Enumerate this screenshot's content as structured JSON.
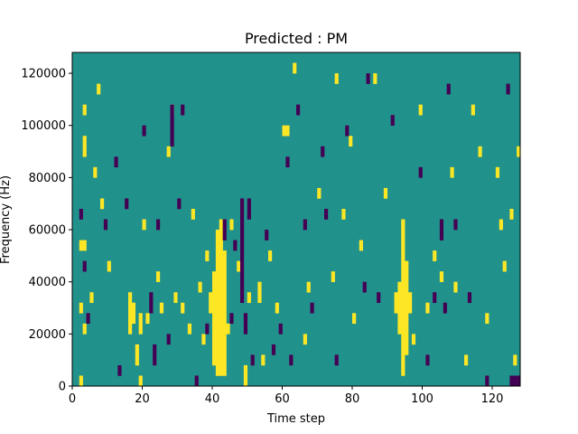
{
  "chart_data": {
    "type": "heatmap",
    "title": "Predicted : PM",
    "xlabel": "Time step",
    "ylabel": "Frequency (Hz)",
    "xlim": [
      0,
      128
    ],
    "ylim": [
      0,
      128000
    ],
    "x_ticks": [
      0,
      20,
      40,
      60,
      80,
      100,
      120
    ],
    "x_tick_labels": [
      "0",
      "20",
      "40",
      "60",
      "80",
      "100",
      "120"
    ],
    "y_ticks": [
      0,
      20000,
      40000,
      60000,
      80000,
      100000,
      120000
    ],
    "y_tick_labels": [
      "0",
      "20000",
      "40000",
      "60000",
      "80000",
      "100000",
      "120000"
    ],
    "grid": false,
    "colormap": "viridis",
    "colors": {
      "background_level": "#21918c",
      "high_level": "#fde725",
      "low_level": "#440154"
    },
    "levels": {
      "low": -1,
      "background": 0,
      "high": 1
    },
    "bin_height_hz": 4000,
    "background_value": 0,
    "high_segments": [
      {
        "x": 2,
        "y0": 0,
        "y1": 4000
      },
      {
        "x": 2,
        "y0": 28000,
        "y1": 32000
      },
      {
        "x": 2,
        "y0": 52000,
        "y1": 56000
      },
      {
        "x": 3,
        "y0": 20000,
        "y1": 24000
      },
      {
        "x": 3,
        "y0": 52000,
        "y1": 56000
      },
      {
        "x": 3,
        "y0": 88000,
        "y1": 96000
      },
      {
        "x": 3,
        "y0": 104000,
        "y1": 108000
      },
      {
        "x": 5,
        "y0": 32000,
        "y1": 36000
      },
      {
        "x": 6,
        "y0": 80000,
        "y1": 84000
      },
      {
        "x": 7,
        "y0": 112000,
        "y1": 116000
      },
      {
        "x": 8,
        "y0": 68000,
        "y1": 72000
      },
      {
        "x": 10,
        "y0": 44000,
        "y1": 48000
      },
      {
        "x": 16,
        "y0": 20000,
        "y1": 36000
      },
      {
        "x": 17,
        "y0": 24000,
        "y1": 32000
      },
      {
        "x": 18,
        "y0": 8000,
        "y1": 16000
      },
      {
        "x": 19,
        "y0": 0,
        "y1": 4000
      },
      {
        "x": 19,
        "y0": 20000,
        "y1": 28000
      },
      {
        "x": 20,
        "y0": 60000,
        "y1": 64000
      },
      {
        "x": 21,
        "y0": 24000,
        "y1": 28000
      },
      {
        "x": 24,
        "y0": 40000,
        "y1": 44000
      },
      {
        "x": 25,
        "y0": 28000,
        "y1": 32000
      },
      {
        "x": 27,
        "y0": 88000,
        "y1": 92000
      },
      {
        "x": 28,
        "y0": 104000,
        "y1": 108000
      },
      {
        "x": 29,
        "y0": 32000,
        "y1": 36000
      },
      {
        "x": 31,
        "y0": 28000,
        "y1": 32000
      },
      {
        "x": 33,
        "y0": 20000,
        "y1": 24000
      },
      {
        "x": 34,
        "y0": 64000,
        "y1": 68000
      },
      {
        "x": 36,
        "y0": 36000,
        "y1": 40000
      },
      {
        "x": 37,
        "y0": 16000,
        "y1": 20000
      },
      {
        "x": 38,
        "y0": 48000,
        "y1": 52000
      },
      {
        "x": 39,
        "y0": 28000,
        "y1": 36000
      },
      {
        "x": 40,
        "y0": 8000,
        "y1": 44000
      },
      {
        "x": 41,
        "y0": 4000,
        "y1": 60000
      },
      {
        "x": 42,
        "y0": 4000,
        "y1": 64000
      },
      {
        "x": 43,
        "y0": 4000,
        "y1": 52000
      },
      {
        "x": 44,
        "y0": 20000,
        "y1": 24000
      },
      {
        "x": 45,
        "y0": 60000,
        "y1": 64000
      },
      {
        "x": 47,
        "y0": 44000,
        "y1": 48000
      },
      {
        "x": 49,
        "y0": 0,
        "y1": 8000
      },
      {
        "x": 50,
        "y0": 32000,
        "y1": 36000
      },
      {
        "x": 53,
        "y0": 32000,
        "y1": 40000
      },
      {
        "x": 54,
        "y0": 8000,
        "y1": 12000
      },
      {
        "x": 56,
        "y0": 48000,
        "y1": 52000
      },
      {
        "x": 58,
        "y0": 28000,
        "y1": 32000
      },
      {
        "x": 60,
        "y0": 96000,
        "y1": 100000
      },
      {
        "x": 61,
        "y0": 96000,
        "y1": 100000
      },
      {
        "x": 63,
        "y0": 120000,
        "y1": 124000
      },
      {
        "x": 66,
        "y0": 16000,
        "y1": 20000
      },
      {
        "x": 67,
        "y0": 36000,
        "y1": 40000
      },
      {
        "x": 70,
        "y0": 72000,
        "y1": 76000
      },
      {
        "x": 74,
        "y0": 40000,
        "y1": 44000
      },
      {
        "x": 75,
        "y0": 116000,
        "y1": 120000
      },
      {
        "x": 77,
        "y0": 64000,
        "y1": 68000
      },
      {
        "x": 79,
        "y0": 92000,
        "y1": 96000
      },
      {
        "x": 80,
        "y0": 24000,
        "y1": 28000
      },
      {
        "x": 82,
        "y0": 52000,
        "y1": 56000
      },
      {
        "x": 86,
        "y0": 116000,
        "y1": 120000
      },
      {
        "x": 89,
        "y0": 72000,
        "y1": 76000
      },
      {
        "x": 92,
        "y0": 28000,
        "y1": 36000
      },
      {
        "x": 93,
        "y0": 20000,
        "y1": 40000
      },
      {
        "x": 94,
        "y0": 4000,
        "y1": 64000
      },
      {
        "x": 95,
        "y0": 12000,
        "y1": 48000
      },
      {
        "x": 96,
        "y0": 28000,
        "y1": 36000
      },
      {
        "x": 97,
        "y0": 16000,
        "y1": 20000
      },
      {
        "x": 99,
        "y0": 104000,
        "y1": 108000
      },
      {
        "x": 101,
        "y0": 28000,
        "y1": 32000
      },
      {
        "x": 103,
        "y0": 48000,
        "y1": 52000
      },
      {
        "x": 105,
        "y0": 40000,
        "y1": 44000
      },
      {
        "x": 108,
        "y0": 80000,
        "y1": 84000
      },
      {
        "x": 109,
        "y0": 36000,
        "y1": 40000
      },
      {
        "x": 112,
        "y0": 8000,
        "y1": 12000
      },
      {
        "x": 114,
        "y0": 104000,
        "y1": 108000
      },
      {
        "x": 116,
        "y0": 88000,
        "y1": 92000
      },
      {
        "x": 118,
        "y0": 24000,
        "y1": 28000
      },
      {
        "x": 121,
        "y0": 80000,
        "y1": 84000
      },
      {
        "x": 122,
        "y0": 60000,
        "y1": 64000
      },
      {
        "x": 123,
        "y0": 44000,
        "y1": 48000
      },
      {
        "x": 125,
        "y0": 64000,
        "y1": 68000
      },
      {
        "x": 126,
        "y0": 8000,
        "y1": 12000
      },
      {
        "x": 127,
        "y0": 88000,
        "y1": 92000
      }
    ],
    "low_segments": [
      {
        "x": 2,
        "y0": 64000,
        "y1": 68000
      },
      {
        "x": 3,
        "y0": 44000,
        "y1": 48000
      },
      {
        "x": 4,
        "y0": 24000,
        "y1": 28000
      },
      {
        "x": 9,
        "y0": 60000,
        "y1": 64000
      },
      {
        "x": 12,
        "y0": 84000,
        "y1": 88000
      },
      {
        "x": 13,
        "y0": 4000,
        "y1": 8000
      },
      {
        "x": 15,
        "y0": 68000,
        "y1": 72000
      },
      {
        "x": 20,
        "y0": 96000,
        "y1": 100000
      },
      {
        "x": 22,
        "y0": 28000,
        "y1": 36000
      },
      {
        "x": 23,
        "y0": 8000,
        "y1": 16000
      },
      {
        "x": 24,
        "y0": 60000,
        "y1": 64000
      },
      {
        "x": 27,
        "y0": 16000,
        "y1": 20000
      },
      {
        "x": 28,
        "y0": 92000,
        "y1": 108000
      },
      {
        "x": 30,
        "y0": 68000,
        "y1": 72000
      },
      {
        "x": 31,
        "y0": 104000,
        "y1": 108000
      },
      {
        "x": 35,
        "y0": 0,
        "y1": 4000
      },
      {
        "x": 38,
        "y0": 20000,
        "y1": 24000
      },
      {
        "x": 43,
        "y0": 56000,
        "y1": 64000
      },
      {
        "x": 45,
        "y0": 24000,
        "y1": 28000
      },
      {
        "x": 46,
        "y0": 52000,
        "y1": 56000
      },
      {
        "x": 48,
        "y0": 32000,
        "y1": 72000
      },
      {
        "x": 49,
        "y0": 20000,
        "y1": 28000
      },
      {
        "x": 50,
        "y0": 64000,
        "y1": 72000
      },
      {
        "x": 51,
        "y0": 8000,
        "y1": 12000
      },
      {
        "x": 55,
        "y0": 56000,
        "y1": 60000
      },
      {
        "x": 57,
        "y0": 12000,
        "y1": 16000
      },
      {
        "x": 59,
        "y0": 20000,
        "y1": 24000
      },
      {
        "x": 61,
        "y0": 84000,
        "y1": 88000
      },
      {
        "x": 62,
        "y0": 8000,
        "y1": 12000
      },
      {
        "x": 64,
        "y0": 104000,
        "y1": 108000
      },
      {
        "x": 66,
        "y0": 60000,
        "y1": 64000
      },
      {
        "x": 68,
        "y0": 28000,
        "y1": 32000
      },
      {
        "x": 71,
        "y0": 88000,
        "y1": 92000
      },
      {
        "x": 72,
        "y0": 64000,
        "y1": 68000
      },
      {
        "x": 75,
        "y0": 8000,
        "y1": 12000
      },
      {
        "x": 78,
        "y0": 96000,
        "y1": 100000
      },
      {
        "x": 83,
        "y0": 36000,
        "y1": 40000
      },
      {
        "x": 84,
        "y0": 116000,
        "y1": 120000
      },
      {
        "x": 87,
        "y0": 32000,
        "y1": 36000
      },
      {
        "x": 91,
        "y0": 100000,
        "y1": 104000
      },
      {
        "x": 99,
        "y0": 80000,
        "y1": 84000
      },
      {
        "x": 101,
        "y0": 8000,
        "y1": 12000
      },
      {
        "x": 103,
        "y0": 32000,
        "y1": 36000
      },
      {
        "x": 105,
        "y0": 56000,
        "y1": 64000
      },
      {
        "x": 106,
        "y0": 28000,
        "y1": 32000
      },
      {
        "x": 107,
        "y0": 112000,
        "y1": 116000
      },
      {
        "x": 109,
        "y0": 60000,
        "y1": 64000
      },
      {
        "x": 113,
        "y0": 32000,
        "y1": 36000
      },
      {
        "x": 118,
        "y0": 0,
        "y1": 4000
      },
      {
        "x": 124,
        "y0": 112000,
        "y1": 116000
      },
      {
        "x": 125,
        "y0": 0,
        "y1": 4000
      },
      {
        "x": 126,
        "y0": 0,
        "y1": 4000
      },
      {
        "x": 127,
        "y0": 0,
        "y1": 4000
      }
    ]
  }
}
